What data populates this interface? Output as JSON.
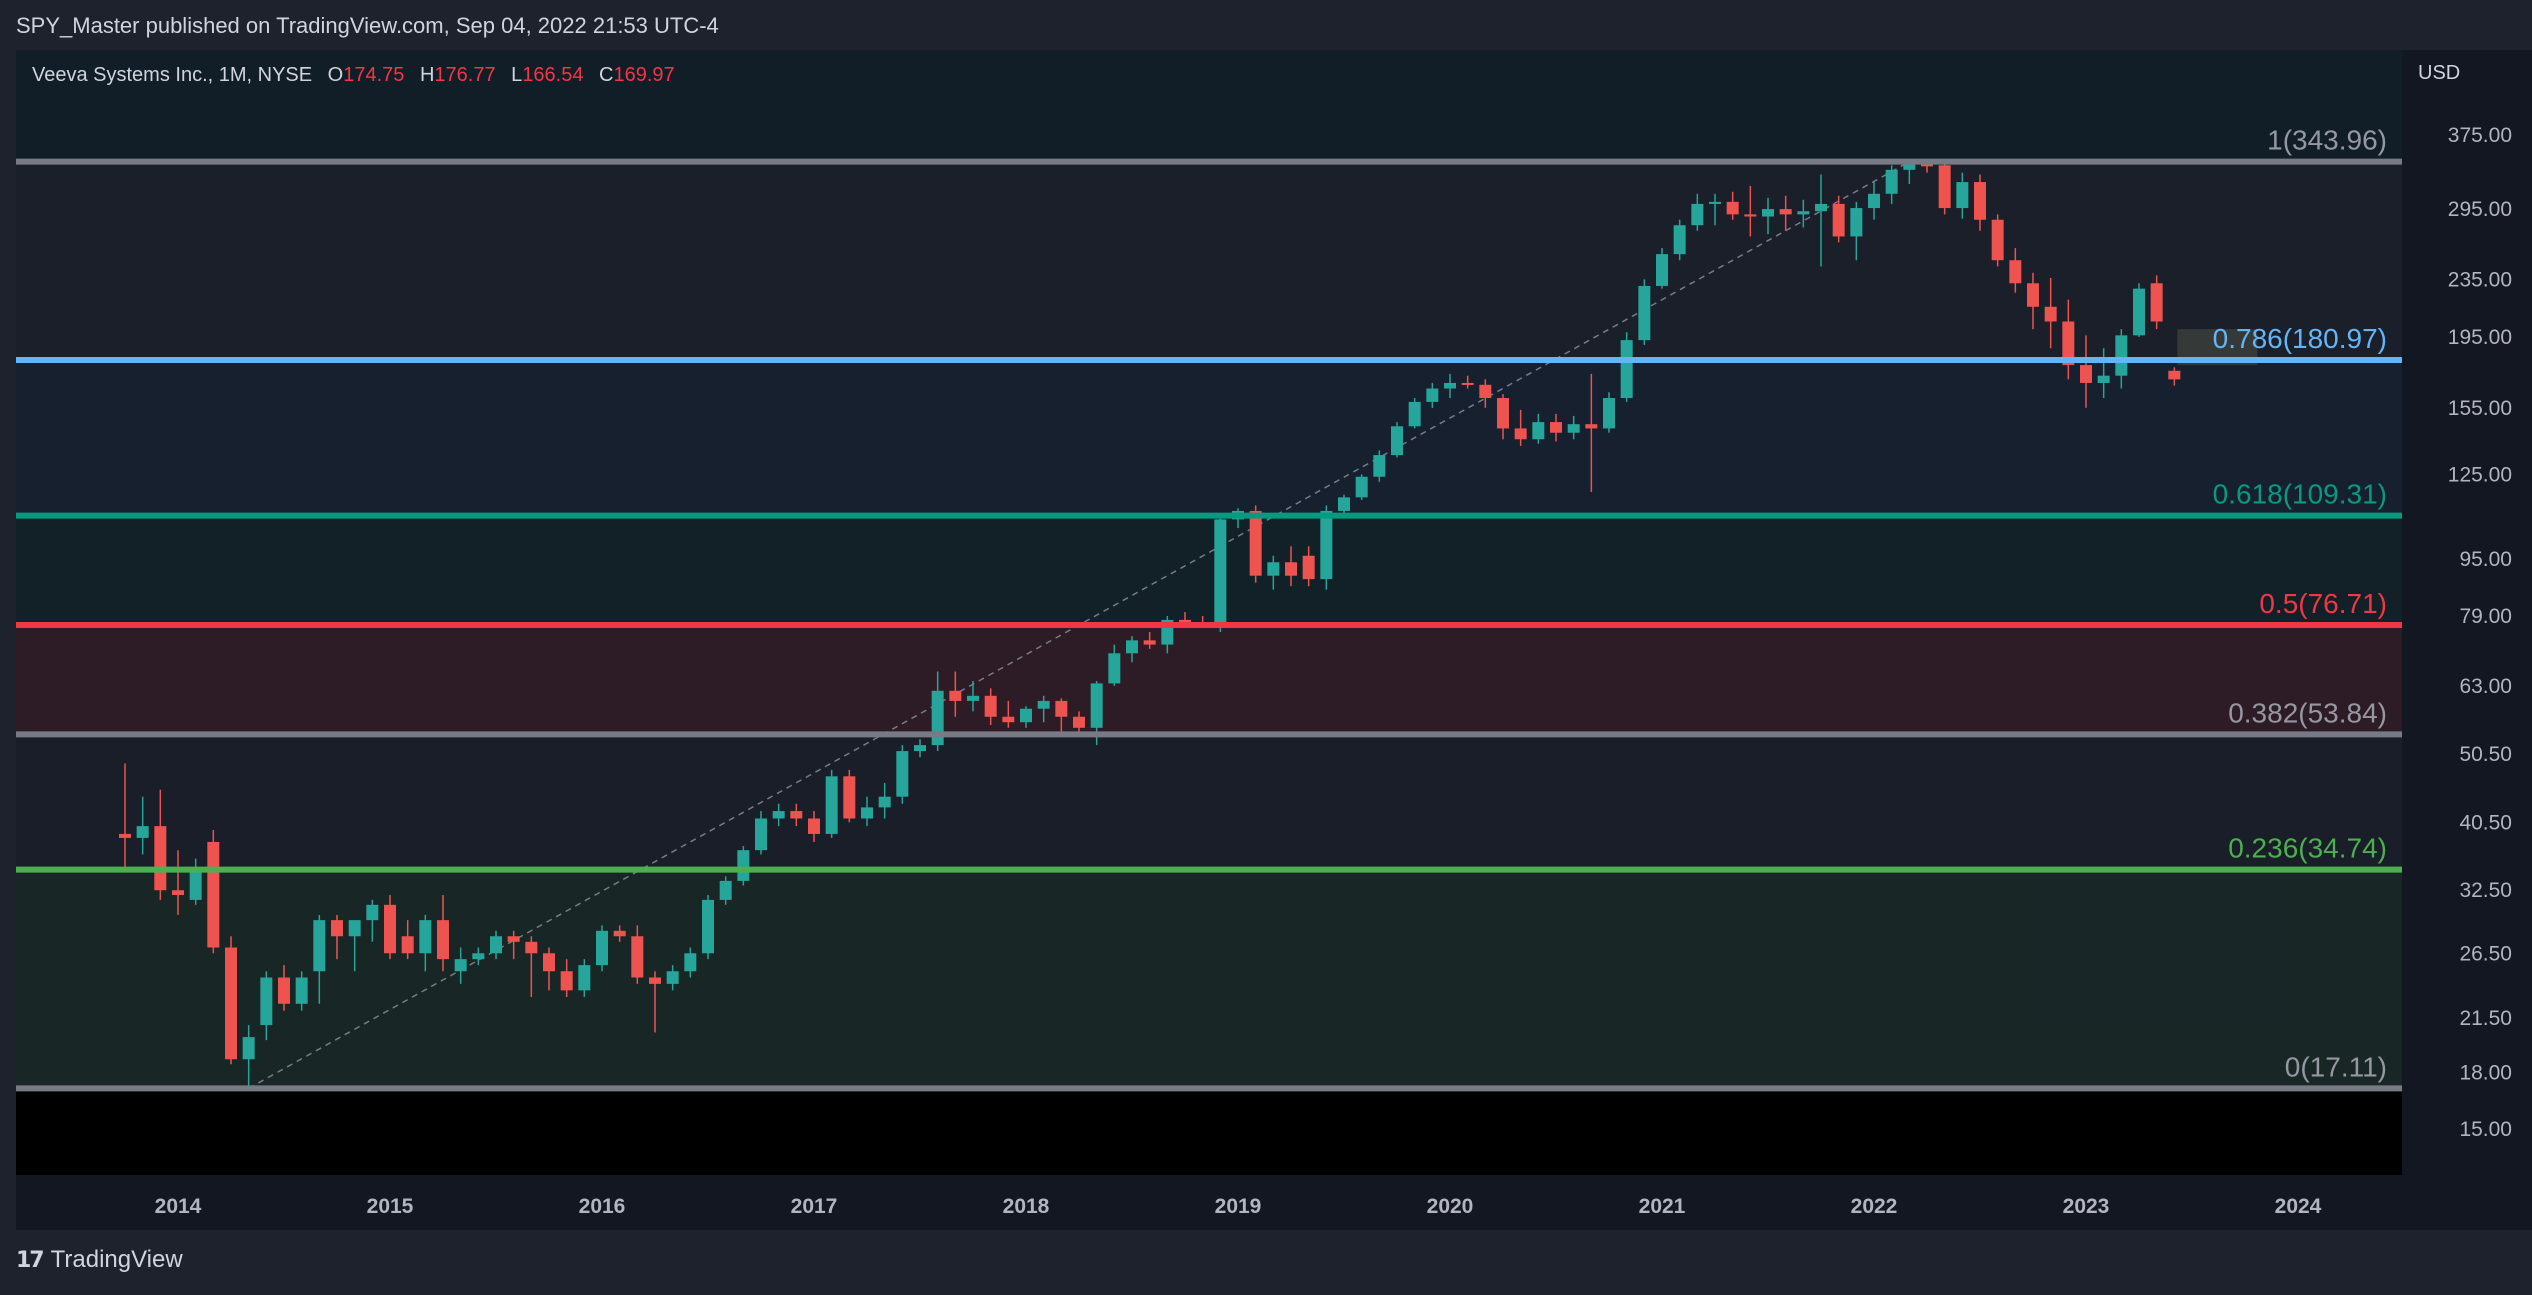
{
  "header": {
    "publisher_text": "SPY_Master published on TradingView.com, Sep 04, 2022 21:53 UTC-4"
  },
  "legend": {
    "symbol": "Veeva Systems Inc., 1M, NYSE",
    "open_label": "O",
    "open": "174.75",
    "high_label": "H",
    "high": "176.77",
    "low_label": "L",
    "low": "166.54",
    "close_label": "C",
    "close": "169.97"
  },
  "axis": {
    "currency": "USD"
  },
  "footer": {
    "brand": "TradingView",
    "brand_mark": "17"
  },
  "colors": {
    "up": "#26a69a",
    "down": "#ef5350",
    "fib_1": "#787b86",
    "fib_786": "#64b5f6",
    "fib_618": "#089981",
    "fib_05": "#f23645",
    "fib_382": "#787b86",
    "fib_236": "#4caf50",
    "fib_0": "#787b86"
  },
  "chart_data": {
    "type": "candlestick",
    "scale": "log",
    "y_ticks": [
      375,
      295,
      235,
      195,
      155,
      125,
      95,
      79,
      63,
      50.5,
      40.5,
      32.5,
      26.5,
      21.5,
      18,
      15
    ],
    "y_tick_labels": [
      "375.00",
      "295.00",
      "235.00",
      "195.00",
      "155.00",
      "125.00",
      "95.00",
      "79.00",
      "63.00",
      "50.50",
      "40.50",
      "32.50",
      "26.50",
      "21.50",
      "18.00",
      "15.00"
    ],
    "x_ticks": [
      "2014",
      "2015",
      "2016",
      "2017",
      "2018",
      "2019",
      "2020",
      "2021",
      "2022",
      "2023",
      "2024"
    ],
    "fib_levels": [
      {
        "ratio": 1,
        "price": 343.96,
        "label": "1(343.96)"
      },
      {
        "ratio": 0.786,
        "price": 180.97,
        "label": "0.786(180.97)"
      },
      {
        "ratio": 0.618,
        "price": 109.31,
        "label": "0.618(109.31)"
      },
      {
        "ratio": 0.5,
        "price": 76.71,
        "label": "0.5(76.71)"
      },
      {
        "ratio": 0.382,
        "price": 53.84,
        "label": "0.382(53.84)"
      },
      {
        "ratio": 0.236,
        "price": 34.74,
        "label": "0.236(34.74)"
      },
      {
        "ratio": 0,
        "price": 17.11,
        "label": "0(17.11)"
      }
    ],
    "candles": [
      {
        "t": "2013-10",
        "o": 39,
        "h": 49,
        "l": 35,
        "c": 38.5
      },
      {
        "t": "2013-11",
        "o": 38.5,
        "h": 44,
        "l": 36.5,
        "c": 40
      },
      {
        "t": "2013-12",
        "o": 40,
        "h": 45,
        "l": 31.5,
        "c": 32.5
      },
      {
        "t": "2014-01",
        "o": 32.5,
        "h": 37,
        "l": 30,
        "c": 32
      },
      {
        "t": "2014-02",
        "o": 31.5,
        "h": 36,
        "l": 31,
        "c": 35
      },
      {
        "t": "2014-03",
        "o": 38,
        "h": 39.5,
        "l": 26.5,
        "c": 27
      },
      {
        "t": "2014-04",
        "o": 27,
        "h": 28,
        "l": 18.5,
        "c": 18.8
      },
      {
        "t": "2014-05",
        "o": 18.8,
        "h": 21,
        "l": 17.1,
        "c": 20.2
      },
      {
        "t": "2014-06",
        "o": 21,
        "h": 25,
        "l": 20,
        "c": 24.5
      },
      {
        "t": "2014-07",
        "o": 24.5,
        "h": 25.5,
        "l": 22,
        "c": 22.5
      },
      {
        "t": "2014-08",
        "o": 22.5,
        "h": 25,
        "l": 22,
        "c": 24.5
      },
      {
        "t": "2014-09",
        "o": 25,
        "h": 30,
        "l": 22.5,
        "c": 29.5
      },
      {
        "t": "2014-10",
        "o": 29.5,
        "h": 30,
        "l": 26,
        "c": 28
      },
      {
        "t": "2014-11",
        "o": 28,
        "h": 29.5,
        "l": 25,
        "c": 29.5
      },
      {
        "t": "2014-12",
        "o": 29.5,
        "h": 31.5,
        "l": 27.5,
        "c": 31
      },
      {
        "t": "2015-01",
        "o": 31,
        "h": 32,
        "l": 26,
        "c": 26.5
      },
      {
        "t": "2015-02",
        "o": 28,
        "h": 29.5,
        "l": 26,
        "c": 26.5
      },
      {
        "t": "2015-03",
        "o": 26.5,
        "h": 30,
        "l": 25,
        "c": 29.5
      },
      {
        "t": "2015-04",
        "o": 29.5,
        "h": 32,
        "l": 25,
        "c": 26
      },
      {
        "t": "2015-05",
        "o": 25,
        "h": 27,
        "l": 24,
        "c": 26
      },
      {
        "t": "2015-06",
        "o": 26,
        "h": 27,
        "l": 25.5,
        "c": 26.5
      },
      {
        "t": "2015-07",
        "o": 26.5,
        "h": 28.5,
        "l": 26,
        "c": 28
      },
      {
        "t": "2015-08",
        "o": 28,
        "h": 28.5,
        "l": 26,
        "c": 27.5
      },
      {
        "t": "2015-09",
        "o": 27.5,
        "h": 28,
        "l": 23,
        "c": 26.5
      },
      {
        "t": "2015-10",
        "o": 26.5,
        "h": 27,
        "l": 23.5,
        "c": 25
      },
      {
        "t": "2015-11",
        "o": 25,
        "h": 26,
        "l": 23,
        "c": 23.5
      },
      {
        "t": "2015-12",
        "o": 23.5,
        "h": 26,
        "l": 23,
        "c": 25.5
      },
      {
        "t": "2016-01",
        "o": 25.5,
        "h": 29,
        "l": 25,
        "c": 28.5
      },
      {
        "t": "2016-02",
        "o": 28.5,
        "h": 29,
        "l": 27.5,
        "c": 28
      },
      {
        "t": "2016-03",
        "o": 28,
        "h": 29,
        "l": 24,
        "c": 24.5
      },
      {
        "t": "2016-04",
        "o": 24.5,
        "h": 25,
        "l": 20.5,
        "c": 24
      },
      {
        "t": "2016-05",
        "o": 24,
        "h": 25.5,
        "l": 23.5,
        "c": 25
      },
      {
        "t": "2016-06",
        "o": 25,
        "h": 27,
        "l": 24.5,
        "c": 26.5
      },
      {
        "t": "2016-07",
        "o": 26.5,
        "h": 32,
        "l": 26,
        "c": 31.5
      },
      {
        "t": "2016-08",
        "o": 31.5,
        "h": 34,
        "l": 31,
        "c": 33.5
      },
      {
        "t": "2016-09",
        "o": 33.5,
        "h": 37.5,
        "l": 33,
        "c": 37
      },
      {
        "t": "2016-10",
        "o": 37,
        "h": 42,
        "l": 36.5,
        "c": 41
      },
      {
        "t": "2016-11",
        "o": 41,
        "h": 43,
        "l": 40,
        "c": 42
      },
      {
        "t": "2016-12",
        "o": 42,
        "h": 43,
        "l": 40,
        "c": 41
      },
      {
        "t": "2017-01",
        "o": 41,
        "h": 42,
        "l": 38,
        "c": 39
      },
      {
        "t": "2017-02",
        "o": 39,
        "h": 48,
        "l": 38.5,
        "c": 47
      },
      {
        "t": "2017-03",
        "o": 47,
        "h": 48,
        "l": 40.5,
        "c": 41
      },
      {
        "t": "2017-04",
        "o": 41,
        "h": 44,
        "l": 40,
        "c": 42.5
      },
      {
        "t": "2017-05",
        "o": 42.5,
        "h": 46,
        "l": 41,
        "c": 44
      },
      {
        "t": "2017-06",
        "o": 44,
        "h": 52,
        "l": 43,
        "c": 51
      },
      {
        "t": "2017-07",
        "o": 51,
        "h": 53,
        "l": 50,
        "c": 52
      },
      {
        "t": "2017-08",
        "o": 52,
        "h": 66,
        "l": 51,
        "c": 62
      },
      {
        "t": "2017-09",
        "o": 62,
        "h": 66,
        "l": 57,
        "c": 60
      },
      {
        "t": "2017-10",
        "o": 60,
        "h": 64,
        "l": 58,
        "c": 61
      },
      {
        "t": "2017-11",
        "o": 61,
        "h": 62.5,
        "l": 55.5,
        "c": 57
      },
      {
        "t": "2017-12",
        "o": 57,
        "h": 60,
        "l": 55,
        "c": 56
      },
      {
        "t": "2018-01",
        "o": 56,
        "h": 59,
        "l": 55,
        "c": 58.5
      },
      {
        "t": "2018-02",
        "o": 58.5,
        "h": 61,
        "l": 56,
        "c": 60
      },
      {
        "t": "2018-03",
        "o": 60,
        "h": 60.5,
        "l": 54,
        "c": 57
      },
      {
        "t": "2018-04",
        "o": 57,
        "h": 58,
        "l": 54,
        "c": 55
      },
      {
        "t": "2018-05",
        "o": 55,
        "h": 64,
        "l": 52,
        "c": 63.5
      },
      {
        "t": "2018-06",
        "o": 63.5,
        "h": 72,
        "l": 63,
        "c": 70
      },
      {
        "t": "2018-07",
        "o": 70,
        "h": 74,
        "l": 68,
        "c": 73
      },
      {
        "t": "2018-08",
        "o": 73,
        "h": 75,
        "l": 71,
        "c": 72
      },
      {
        "t": "2018-09",
        "o": 72,
        "h": 79,
        "l": 70,
        "c": 78
      },
      {
        "t": "2018-10",
        "o": 78,
        "h": 80,
        "l": 76,
        "c": 77
      },
      {
        "t": "2018-11",
        "o": 77,
        "h": 79,
        "l": 76,
        "c": 76.5
      },
      {
        "t": "2018-12",
        "o": 76.5,
        "h": 110,
        "l": 75,
        "c": 108
      },
      {
        "t": "2019-01",
        "o": 108,
        "h": 112,
        "l": 105,
        "c": 111
      },
      {
        "t": "2019-02",
        "o": 111,
        "h": 113,
        "l": 88,
        "c": 90
      },
      {
        "t": "2019-03",
        "o": 90,
        "h": 96,
        "l": 86,
        "c": 94
      },
      {
        "t": "2019-04",
        "o": 94,
        "h": 99,
        "l": 87,
        "c": 90
      },
      {
        "t": "2019-05",
        "o": 96,
        "h": 99,
        "l": 87,
        "c": 89
      },
      {
        "t": "2019-06",
        "o": 89,
        "h": 113,
        "l": 86,
        "c": 111
      },
      {
        "t": "2019-07",
        "o": 111,
        "h": 117,
        "l": 110,
        "c": 116
      },
      {
        "t": "2019-08",
        "o": 116,
        "h": 125,
        "l": 115,
        "c": 124
      },
      {
        "t": "2019-09",
        "o": 124,
        "h": 135,
        "l": 122,
        "c": 133
      },
      {
        "t": "2019-10",
        "o": 133,
        "h": 148,
        "l": 132,
        "c": 146
      },
      {
        "t": "2019-11",
        "o": 146,
        "h": 160,
        "l": 145,
        "c": 158
      },
      {
        "t": "2019-12",
        "o": 158,
        "h": 168,
        "l": 155,
        "c": 165
      },
      {
        "t": "2020-01",
        "o": 165,
        "h": 173,
        "l": 160,
        "c": 168
      },
      {
        "t": "2020-02",
        "o": 168,
        "h": 172,
        "l": 165,
        "c": 167
      },
      {
        "t": "2020-03",
        "o": 167,
        "h": 170,
        "l": 155,
        "c": 160
      },
      {
        "t": "2020-04",
        "o": 160,
        "h": 162,
        "l": 140,
        "c": 145
      },
      {
        "t": "2020-05",
        "o": 145,
        "h": 154,
        "l": 137,
        "c": 140
      },
      {
        "t": "2020-06",
        "o": 140,
        "h": 152,
        "l": 138,
        "c": 148
      },
      {
        "t": "2020-07",
        "o": 148,
        "h": 152,
        "l": 139,
        "c": 143
      },
      {
        "t": "2020-08",
        "o": 143,
        "h": 151,
        "l": 140,
        "c": 147
      },
      {
        "t": "2020-09",
        "o": 147,
        "h": 173,
        "l": 118,
        "c": 145
      },
      {
        "t": "2020-10",
        "o": 145,
        "h": 163,
        "l": 143,
        "c": 160
      },
      {
        "t": "2020-11",
        "o": 160,
        "h": 198,
        "l": 158,
        "c": 193
      },
      {
        "t": "2020-12",
        "o": 193,
        "h": 235,
        "l": 190,
        "c": 230
      },
      {
        "t": "2021-01",
        "o": 230,
        "h": 260,
        "l": 228,
        "c": 255
      },
      {
        "t": "2021-02",
        "o": 255,
        "h": 285,
        "l": 250,
        "c": 280
      },
      {
        "t": "2021-03",
        "o": 280,
        "h": 310,
        "l": 275,
        "c": 300
      },
      {
        "t": "2021-04",
        "o": 300,
        "h": 310,
        "l": 280,
        "c": 302
      },
      {
        "t": "2021-05",
        "o": 302,
        "h": 312,
        "l": 285,
        "c": 290
      },
      {
        "t": "2021-06",
        "o": 290,
        "h": 318,
        "l": 270,
        "c": 288
      },
      {
        "t": "2021-07",
        "o": 288,
        "h": 306,
        "l": 272,
        "c": 295
      },
      {
        "t": "2021-08",
        "o": 295,
        "h": 308,
        "l": 275,
        "c": 290
      },
      {
        "t": "2021-09",
        "o": 290,
        "h": 304,
        "l": 278,
        "c": 293
      },
      {
        "t": "2021-10",
        "o": 293,
        "h": 330,
        "l": 245,
        "c": 300
      },
      {
        "t": "2021-11",
        "o": 300,
        "h": 308,
        "l": 265,
        "c": 270
      },
      {
        "t": "2021-12",
        "o": 270,
        "h": 302,
        "l": 250,
        "c": 296
      },
      {
        "t": "2022-01",
        "o": 296,
        "h": 322,
        "l": 285,
        "c": 310
      },
      {
        "t": "2022-02",
        "o": 310,
        "h": 340,
        "l": 300,
        "c": 335
      },
      {
        "t": "2022-03",
        "o": 335,
        "h": 344,
        "l": 320,
        "c": 341
      },
      {
        "t": "2022-04",
        "o": 341,
        "h": 344,
        "l": 332,
        "c": 340
      },
      {
        "t": "2022-05",
        "o": 340,
        "h": 342,
        "l": 290,
        "c": 296
      },
      {
        "t": "2022-06",
        "o": 296,
        "h": 332,
        "l": 286,
        "c": 322
      },
      {
        "t": "2022-07",
        "o": 322,
        "h": 330,
        "l": 275,
        "c": 285
      },
      {
        "t": "2022-08",
        "o": 285,
        "h": 290,
        "l": 245,
        "c": 250
      },
      {
        "t": "2022-09",
        "o": 250,
        "h": 260,
        "l": 225,
        "c": 232
      },
      {
        "t": "2022-10",
        "o": 232,
        "h": 240,
        "l": 200,
        "c": 215
      },
      {
        "t": "2022-11",
        "o": 215,
        "h": 236,
        "l": 188,
        "c": 205
      },
      {
        "t": "2022-12",
        "o": 205,
        "h": 220,
        "l": 170,
        "c": 178
      },
      {
        "t": "2023-01",
        "o": 178,
        "h": 196,
        "l": 155,
        "c": 168
      },
      {
        "t": "2023-02",
        "o": 168,
        "h": 188,
        "l": 160,
        "c": 172
      },
      {
        "t": "2023-03",
        "o": 172,
        "h": 200,
        "l": 165,
        "c": 196
      },
      {
        "t": "2023-04",
        "o": 196,
        "h": 232,
        "l": 195,
        "c": 228
      },
      {
        "t": "2023-05",
        "o": 232,
        "h": 238,
        "l": 200,
        "c": 205
      },
      {
        "t": "2023-06",
        "o": 174.75,
        "h": 176.77,
        "l": 166.54,
        "c": 169.97
      }
    ]
  }
}
